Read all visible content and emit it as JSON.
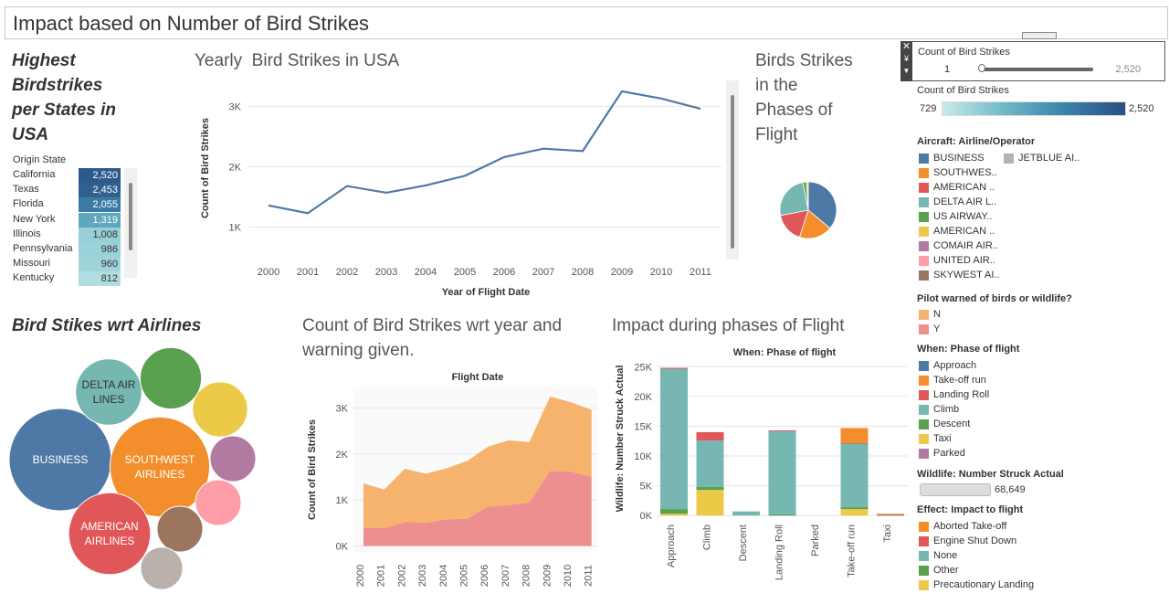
{
  "dashboard": {
    "title": "Impact based on Number of Bird Strikes"
  },
  "states_table": {
    "title_lines": [
      "Highest",
      "Birdstrikes",
      "per States in",
      "USA"
    ],
    "column_header": "Origin State",
    "rows": [
      {
        "state": "California",
        "value": "2,520",
        "color": "#2d5a8c",
        "text": "#fff"
      },
      {
        "state": "Texas",
        "value": "2,453",
        "color": "#31608f",
        "text": "#fff"
      },
      {
        "state": "Florida",
        "value": "2,055",
        "color": "#3a7ba3",
        "text": "#fff"
      },
      {
        "state": "New York",
        "value": "1,319",
        "color": "#5fa7be",
        "text": "#fff"
      },
      {
        "state": "Illinois",
        "value": "1,008",
        "color": "#96cfd6",
        "text": "#333"
      },
      {
        "state": "Pennsylvania",
        "value": "986",
        "color": "#9bd1d8",
        "text": "#333"
      },
      {
        "state": "Missouri",
        "value": "960",
        "color": "#a0d4da",
        "text": "#333"
      },
      {
        "state": "Kentucky",
        "value": "812",
        "color": "#b2dde0",
        "text": "#333"
      }
    ]
  },
  "line_chart_title": "Yearly  Bird Strikes in USA",
  "pie_title_lines": [
    "Birds Strikes",
    "in the",
    "Phases of",
    "Flight"
  ],
  "bubble_title": "Bird Stikes wrt Airlines",
  "area_title_lines": [
    "Count of Bird Strikes wrt year and",
    "warning given."
  ],
  "stack_title": "Impact during phases of Flight",
  "filter": {
    "label": "Count of Bird Strikes",
    "min": "1",
    "max": "2,520"
  },
  "color_legend": {
    "label": "Count of Bird Strikes",
    "min": "729",
    "max": "2,520"
  },
  "airline_legend": {
    "header": "Aircraft: Airline/Operator",
    "items": [
      {
        "label": "BUSINESS",
        "color": "#4e79a7"
      },
      {
        "label": "SOUTHWES..",
        "color": "#f28e2b"
      },
      {
        "label": "AMERICAN ..",
        "color": "#e15759"
      },
      {
        "label": "DELTA AIR L..",
        "color": "#76b7b2"
      },
      {
        "label": "US AIRWAY..",
        "color": "#59a14f"
      },
      {
        "label": "AMERICAN ..",
        "color": "#edc948"
      },
      {
        "label": "COMAIR AIR..",
        "color": "#b07aa1"
      },
      {
        "label": "UNITED AIR..",
        "color": "#ff9da7"
      },
      {
        "label": "SKYWEST AI..",
        "color": "#9c755f"
      }
    ],
    "extra": {
      "label": "JETBLUE AI..",
      "color": "#bab0ac"
    }
  },
  "warning_legend": {
    "header": "Pilot warned of birds or wildlife?",
    "items": [
      {
        "label": "N",
        "color": "#f5b36e"
      },
      {
        "label": "Y",
        "color": "#ee8f8f"
      }
    ]
  },
  "phase_legend": {
    "header": "When: Phase of flight",
    "items": [
      {
        "label": "Approach",
        "color": "#4e79a7"
      },
      {
        "label": "Take-off run",
        "color": "#f28e2b"
      },
      {
        "label": "Landing Roll",
        "color": "#e15759"
      },
      {
        "label": "Climb",
        "color": "#76b7b2"
      },
      {
        "label": "Descent",
        "color": "#59a14f"
      },
      {
        "label": "Taxi",
        "color": "#edc948"
      },
      {
        "label": "Parked",
        "color": "#b07aa1"
      }
    ]
  },
  "wildlife_legend": {
    "header": "Wildlife: Number Struck Actual",
    "value": "68,649"
  },
  "effect_legend": {
    "header": "Effect: Impact to flight",
    "items": [
      {
        "label": "Aborted Take-off",
        "color": "#f28e2b"
      },
      {
        "label": "Engine Shut Down",
        "color": "#e15759"
      },
      {
        "label": "None",
        "color": "#76b7b2"
      },
      {
        "label": "Other",
        "color": "#59a14f"
      },
      {
        "label": "Precautionary Landing",
        "color": "#edc948"
      }
    ]
  },
  "chart_data": [
    {
      "id": "yearly",
      "type": "line",
      "xlabel": "Year of Flight Date",
      "ylabel": "Count of Bird Strikes",
      "x": [
        "2000",
        "2001",
        "2002",
        "2003",
        "2004",
        "2005",
        "2006",
        "2007",
        "2008",
        "2009",
        "2010",
        "2011"
      ],
      "values": [
        1360,
        1230,
        1680,
        1570,
        1690,
        1850,
        2160,
        2300,
        2260,
        3250,
        3130,
        2960
      ],
      "ylim": [
        600,
        3400
      ],
      "yticks": [
        {
          "v": 1000,
          "l": "1K"
        },
        {
          "v": 2000,
          "l": "2K"
        },
        {
          "v": 3000,
          "l": "3K"
        }
      ],
      "color": "#4e79a7",
      "grid": true
    },
    {
      "id": "pie",
      "type": "pie",
      "slices": [
        {
          "name": "Approach",
          "value": 36,
          "color": "#4e79a7"
        },
        {
          "name": "Take-off run",
          "value": 19,
          "color": "#f28e2b"
        },
        {
          "name": "Landing Roll",
          "value": 17,
          "color": "#e15759"
        },
        {
          "name": "Climb",
          "value": 25,
          "color": "#76b7b2"
        },
        {
          "name": "Descent",
          "value": 2,
          "color": "#59a14f"
        },
        {
          "name": "Taxi",
          "value": 1,
          "color": "#edc948"
        }
      ]
    },
    {
      "id": "bubbles",
      "type": "bubble",
      "bubbles": [
        {
          "name": "BUSINESS",
          "label": [
            "BUSINESS"
          ],
          "value": 1.0,
          "color": "#4e79a7"
        },
        {
          "name": "SOUTHWEST AIRLINES",
          "label": [
            "SOUTHWEST",
            "AIRLINES"
          ],
          "value": 0.95,
          "color": "#f28e2b"
        },
        {
          "name": "AMERICAN AIRLINES",
          "label": [
            "AMERICAN",
            "AIRLINES"
          ],
          "value": 0.64,
          "color": "#e15759"
        },
        {
          "name": "DELTA AIR LINES",
          "label": [
            "DELTA AIR",
            "LINES"
          ],
          "value": 0.42,
          "color": "#76b7b2"
        },
        {
          "name": "US AIRWAYS",
          "label": [],
          "value": 0.36,
          "color": "#59a14f"
        },
        {
          "name": "AMERICAN EAGLE",
          "label": [],
          "value": 0.29,
          "color": "#edc948"
        },
        {
          "name": "COMAIR AIRLINES",
          "label": [],
          "value": 0.2,
          "color": "#b07aa1"
        },
        {
          "name": "UNITED AIRLINES",
          "label": [],
          "value": 0.2,
          "color": "#ff9da7"
        },
        {
          "name": "SKYWEST AIRLINES",
          "label": [],
          "value": 0.2,
          "color": "#9c755f"
        },
        {
          "name": "JETBLUE AIRWAYS",
          "label": [],
          "value": 0.17,
          "color": "#bab0ac"
        }
      ]
    },
    {
      "id": "area",
      "type": "area",
      "top_label": "Flight Date",
      "ylabel": "Count of Bird Strikes",
      "x": [
        "2000",
        "2001",
        "2002",
        "2003",
        "2004",
        "2005",
        "2006",
        "2007",
        "2008",
        "2009",
        "2010",
        "2011"
      ],
      "series": [
        {
          "name": "Y",
          "values": [
            390,
            390,
            520,
            510,
            580,
            590,
            860,
            890,
            950,
            1630,
            1620,
            1500
          ],
          "color": "#ee8f8f"
        },
        {
          "name": "N",
          "values": [
            970,
            840,
            1160,
            1060,
            1110,
            1260,
            1300,
            1410,
            1310,
            1620,
            1510,
            1460
          ],
          "color": "#f5b36e"
        }
      ],
      "ylim": [
        -150,
        3450
      ],
      "yticks": [
        {
          "v": 0,
          "l": "0K"
        },
        {
          "v": 1000,
          "l": "1K"
        },
        {
          "v": 2000,
          "l": "2K"
        },
        {
          "v": 3000,
          "l": "3K"
        }
      ]
    },
    {
      "id": "stacked",
      "type": "bar",
      "top_label": "When: Phase of flight",
      "ylabel": "Wildlife: Number Struck Actual",
      "categories": [
        "Approach",
        "Climb",
        "Descent",
        "Landing Roll",
        "Parked",
        "Take-off run",
        "Taxi"
      ],
      "series": [
        {
          "name": "Precautionary Landing",
          "values": [
            300,
            4300,
            0,
            0,
            0,
            1100,
            0
          ],
          "color": "#edc948"
        },
        {
          "name": "Other",
          "values": [
            800,
            500,
            0,
            200,
            0,
            300,
            0
          ],
          "color": "#59a14f"
        },
        {
          "name": "None",
          "values": [
            23600,
            7800,
            700,
            14000,
            0,
            10700,
            100
          ],
          "color": "#76b7b2"
        },
        {
          "name": "Engine Shut Down",
          "values": [
            100,
            1400,
            0,
            100,
            0,
            100,
            100
          ],
          "color": "#e15759"
        },
        {
          "name": "Aborted Take-off",
          "values": [
            0,
            0,
            0,
            0,
            0,
            2500,
            100
          ],
          "color": "#f28e2b"
        }
      ],
      "ylim": [
        -1500,
        25500
      ],
      "yticks": [
        {
          "v": 0,
          "l": "0K"
        },
        {
          "v": 5000,
          "l": "5K"
        },
        {
          "v": 10000,
          "l": "10K"
        },
        {
          "v": 15000,
          "l": "15K"
        },
        {
          "v": 20000,
          "l": "20K"
        },
        {
          "v": 25000,
          "l": "25K"
        }
      ]
    }
  ]
}
